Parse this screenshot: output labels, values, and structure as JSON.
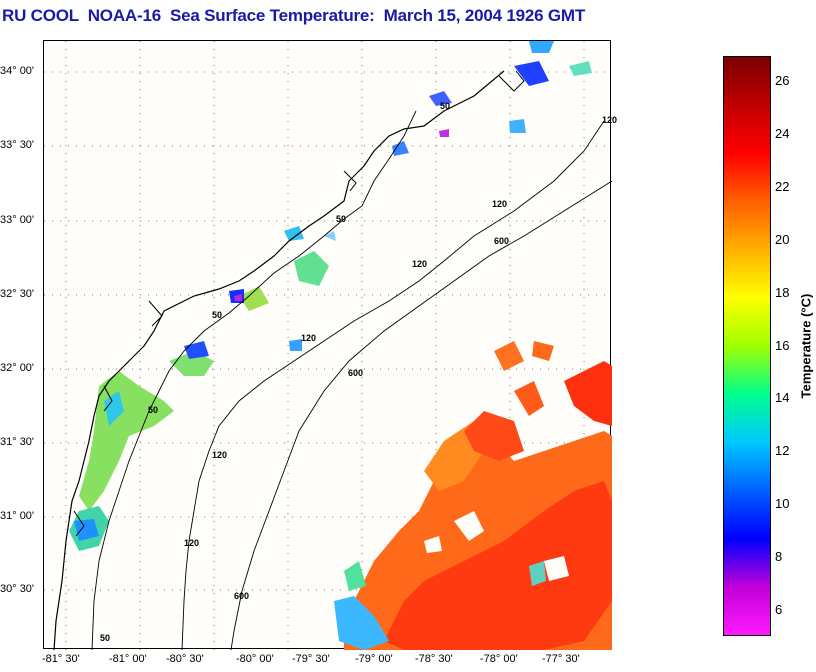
{
  "title": "RU COOL  NOAA-16  Sea Surface Temperature:  March 15, 2004 1926 GMT",
  "map": {
    "lat_labels": [
      "34° 00'",
      "33° 30'",
      "33° 00'",
      "32° 30'",
      "32° 00'",
      "31° 30'",
      "31° 00'",
      "30° 30'"
    ],
    "lon_labels": [
      "-81° 30'",
      "-81° 00'",
      "-80° 30'",
      "-80° 00'",
      "-79° 30'",
      "-79° 00'",
      "-78° 30'",
      "-78° 00'",
      "-77° 30'"
    ],
    "contour_labels": [
      "50",
      "50",
      "50",
      "50",
      "50",
      "120",
      "120",
      "120",
      "120",
      "120",
      "120",
      "600",
      "600",
      "600"
    ]
  },
  "colorbar": {
    "label": "Temperature (°C)",
    "ticks": [
      "26",
      "24",
      "22",
      "20",
      "18",
      "16",
      "14",
      "12",
      "10",
      "8",
      "6"
    ],
    "range": [
      5,
      27
    ],
    "colors": [
      "#ff1aff",
      "#c000d8",
      "#0000ff",
      "#0060ff",
      "#00c8ff",
      "#00ff90",
      "#a0ff00",
      "#ffff00",
      "#ffb000",
      "#ff6000",
      "#ff0000",
      "#c00000",
      "#7a0000"
    ]
  }
}
